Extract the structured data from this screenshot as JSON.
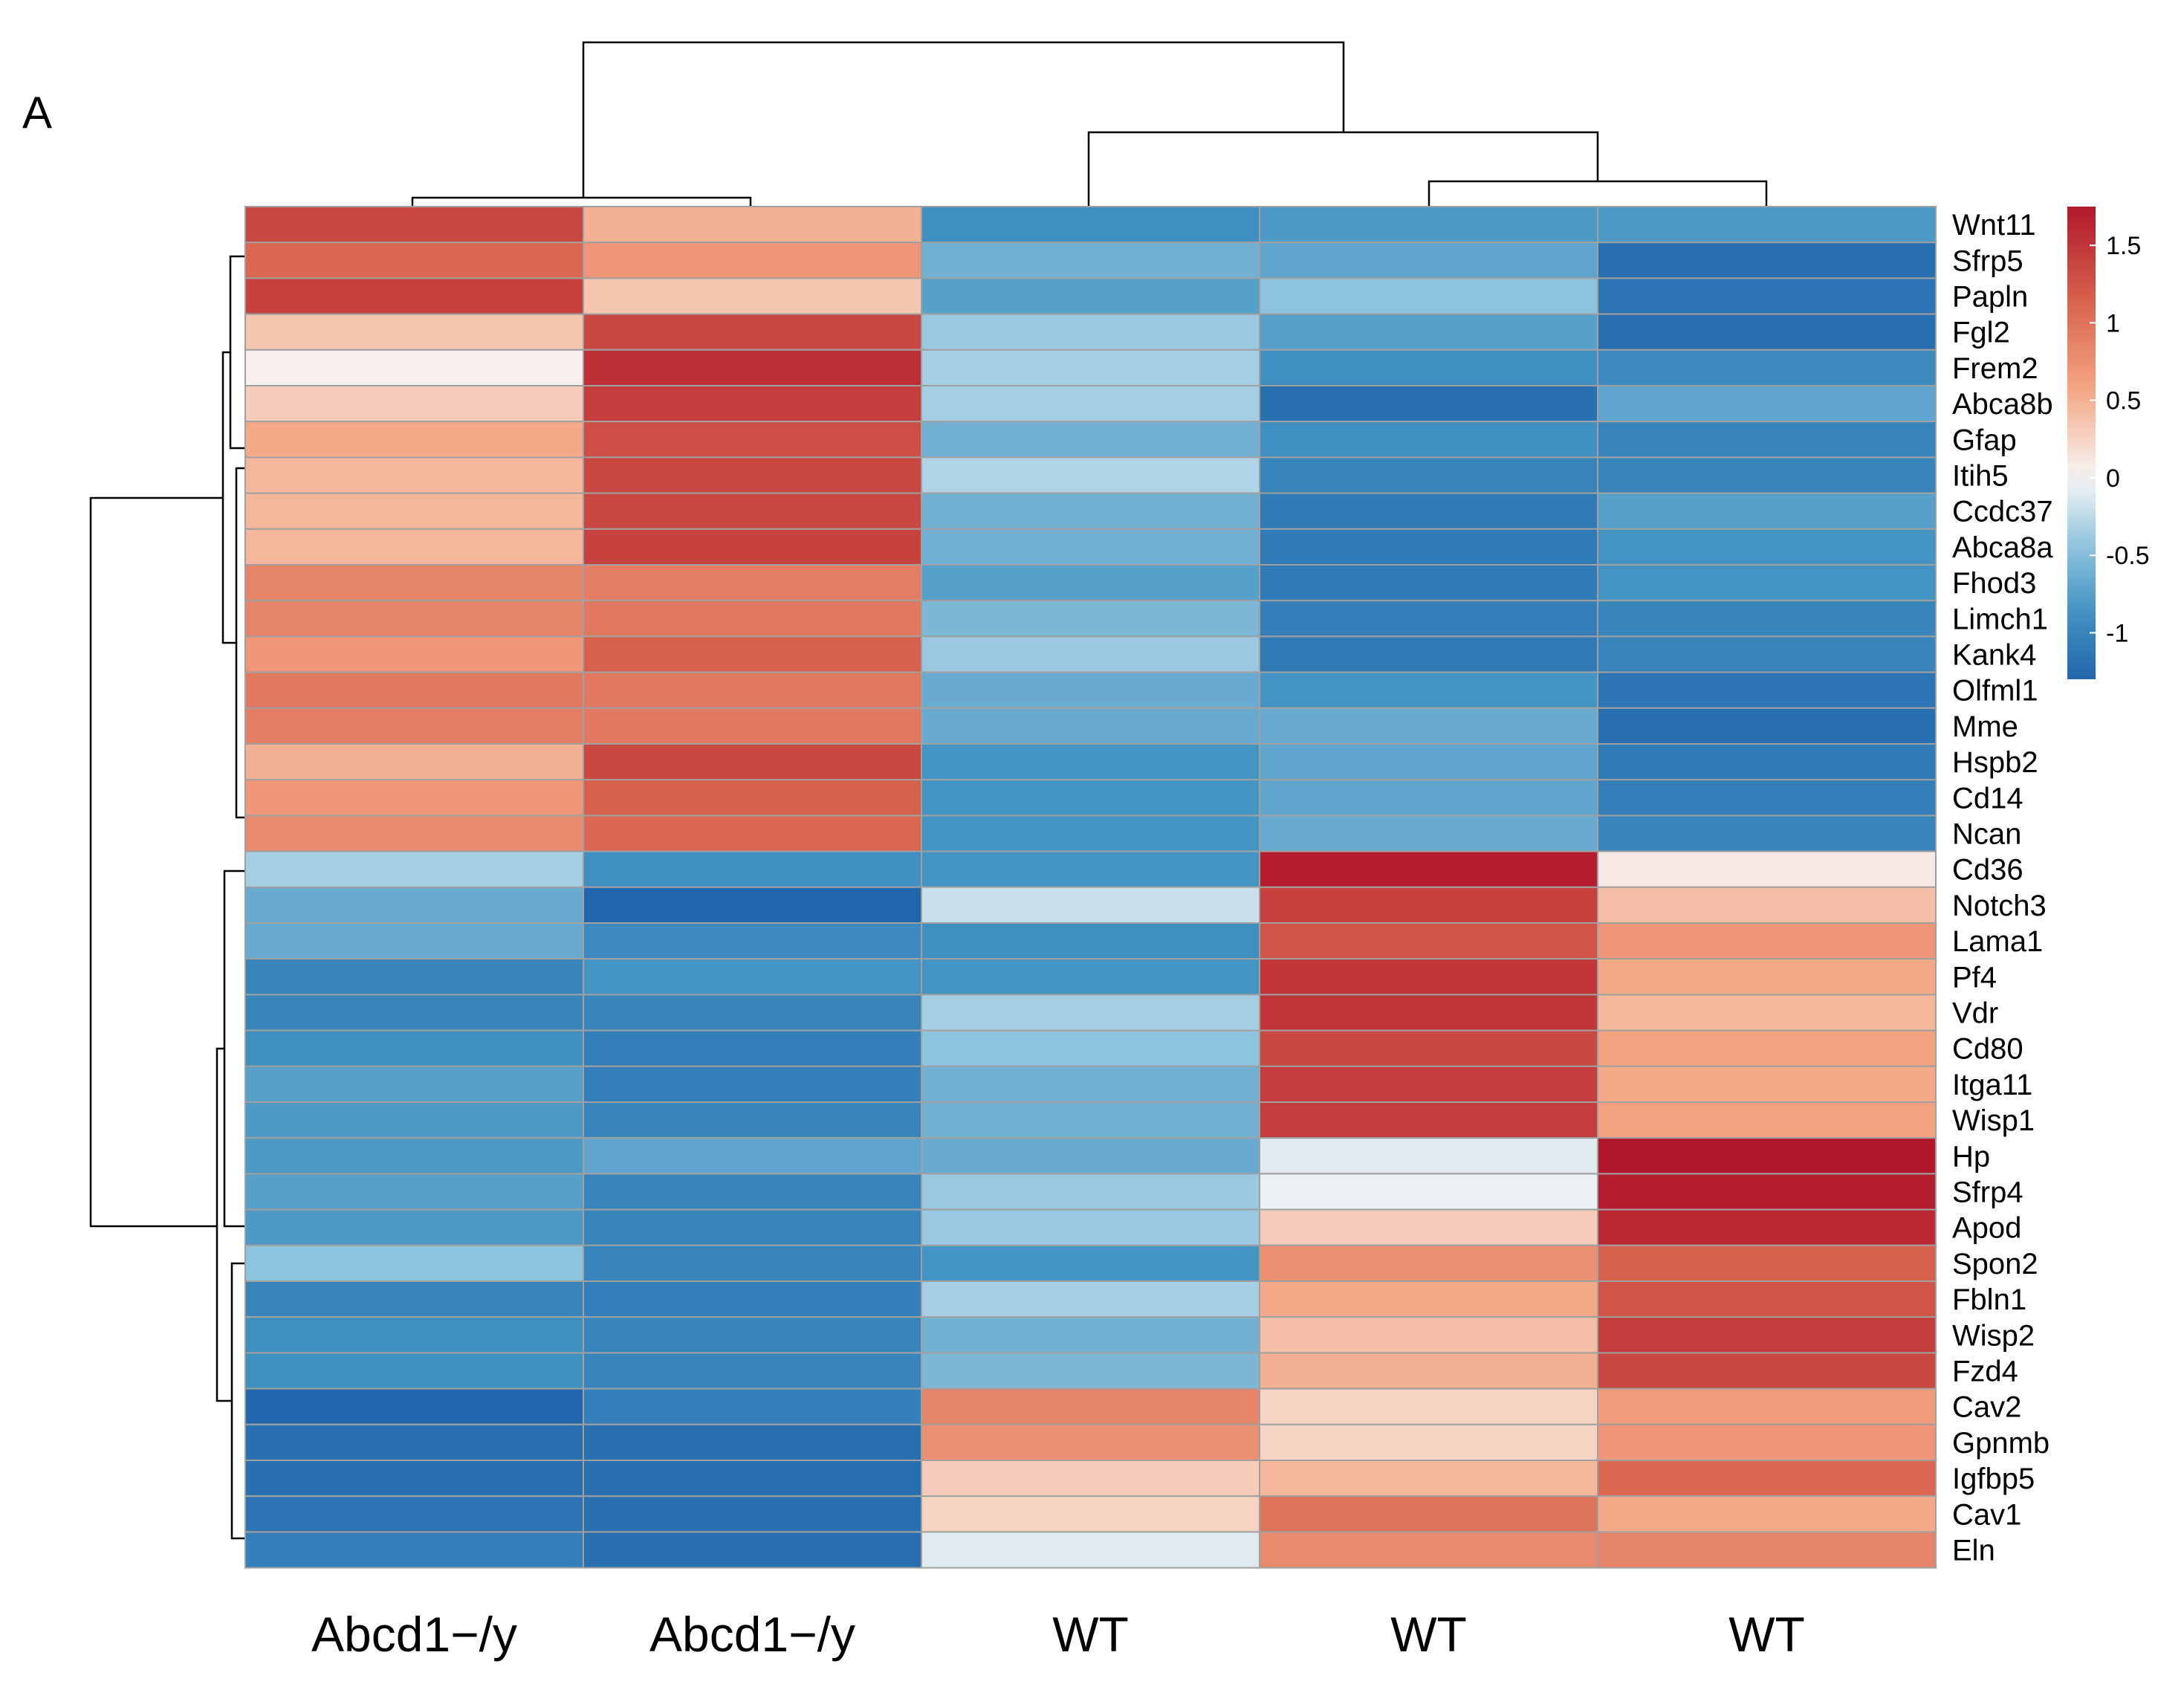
{
  "panel_label": "A",
  "chart_data": {
    "type": "heatmap",
    "title": "",
    "samples": [
      "Abcd1−/y",
      "Abcd1−/y",
      "WT",
      "WT",
      "WT"
    ],
    "genes": [
      "Wnt11",
      "Sfrp5",
      "Papln",
      "Fgl2",
      "Frem2",
      "Abca8b",
      "Gfap",
      "Itih5",
      "Ccdc37",
      "Abca8a",
      "Fhod3",
      "Limch1",
      "Kank4",
      "Olfml1",
      "Mme",
      "Hspb2",
      "Cd14",
      "Ncan",
      "Cd36",
      "Notch3",
      "Lama1",
      "Pf4",
      "Vdr",
      "Cd80",
      "Itga11",
      "Wisp1",
      "Hp",
      "Sfrp4",
      "Apod",
      "Spon2",
      "Fbln1",
      "Wisp2",
      "Fzd4",
      "Cav2",
      "Gpnmb",
      "Igfbp5",
      "Cav1",
      "Eln"
    ],
    "values": [
      [
        1.35,
        0.5,
        -0.9,
        -0.8,
        -0.8
      ],
      [
        1.1,
        0.7,
        -0.6,
        -0.7,
        -1.2
      ],
      [
        1.4,
        0.35,
        -0.75,
        -0.45,
        -1.15
      ],
      [
        0.35,
        1.35,
        -0.4,
        -0.75,
        -1.2
      ],
      [
        0.05,
        1.55,
        -0.35,
        -0.9,
        -0.95
      ],
      [
        0.3,
        1.45,
        -0.35,
        -1.2,
        -0.7
      ],
      [
        0.55,
        1.3,
        -0.6,
        -0.9,
        -1.0
      ],
      [
        0.45,
        1.35,
        -0.3,
        -1.0,
        -1.0
      ],
      [
        0.45,
        1.35,
        -0.6,
        -1.1,
        -0.75
      ],
      [
        0.45,
        1.4,
        -0.6,
        -1.1,
        -0.85
      ],
      [
        0.85,
        0.9,
        -0.75,
        -1.1,
        -0.85
      ],
      [
        0.85,
        0.95,
        -0.55,
        -1.05,
        -1.0
      ],
      [
        0.7,
        1.15,
        -0.4,
        -1.1,
        -1.0
      ],
      [
        0.95,
        0.95,
        -0.65,
        -0.85,
        -1.15
      ],
      [
        0.9,
        0.95,
        -0.65,
        -0.65,
        -1.2
      ],
      [
        0.5,
        1.35,
        -0.85,
        -0.7,
        -1.1
      ],
      [
        0.7,
        1.15,
        -0.85,
        -0.7,
        -1.05
      ],
      [
        0.8,
        1.1,
        -0.85,
        -0.65,
        -1.0
      ],
      [
        -0.35,
        -0.9,
        -0.85,
        1.7,
        0.1
      ],
      [
        -0.65,
        -1.3,
        -0.2,
        1.4,
        0.4
      ],
      [
        -0.65,
        -0.95,
        -0.9,
        1.25,
        0.7
      ],
      [
        -1.0,
        -0.85,
        -0.85,
        1.5,
        0.55
      ],
      [
        -1.0,
        -1.0,
        -0.35,
        1.5,
        0.45
      ],
      [
        -0.9,
        -1.05,
        -0.45,
        1.35,
        0.6
      ],
      [
        -0.75,
        -1.05,
        -0.6,
        1.45,
        0.55
      ],
      [
        -0.8,
        -1.0,
        -0.6,
        1.45,
        0.6
      ],
      [
        -0.8,
        -0.7,
        -0.65,
        -0.1,
        1.75
      ],
      [
        -0.75,
        -1.0,
        -0.4,
        -0.05,
        1.7
      ],
      [
        -0.8,
        -1.0,
        -0.4,
        0.3,
        1.6
      ],
      [
        -0.45,
        -1.0,
        -0.85,
        0.75,
        1.15
      ],
      [
        -1.0,
        -1.05,
        -0.35,
        0.55,
        1.25
      ],
      [
        -0.9,
        -1.0,
        -0.6,
        0.4,
        1.45
      ],
      [
        -0.9,
        -1.0,
        -0.55,
        0.5,
        1.35
      ],
      [
        -1.3,
        -1.05,
        0.85,
        0.25,
        0.65
      ],
      [
        -1.2,
        -1.2,
        0.75,
        0.25,
        0.7
      ],
      [
        -1.2,
        -1.2,
        0.3,
        0.45,
        1.1
      ],
      [
        -1.15,
        -1.2,
        0.25,
        1.0,
        0.55
      ],
      [
        -1.05,
        -1.2,
        -0.1,
        0.8,
        0.85
      ]
    ],
    "color_scale": {
      "min": -1.3,
      "max": 1.75,
      "low_color": "#2166ac",
      "mid_color": "#f7f7f7",
      "high_color": "#b2182b"
    },
    "legend_ticks": [
      "1.5",
      "1",
      "0.5",
      "0",
      "-0.5",
      "-1"
    ],
    "legend_tick_values": [
      1.5,
      1,
      0.5,
      0,
      -0.5,
      -1
    ],
    "legend_position": "top-right",
    "grid": true
  }
}
